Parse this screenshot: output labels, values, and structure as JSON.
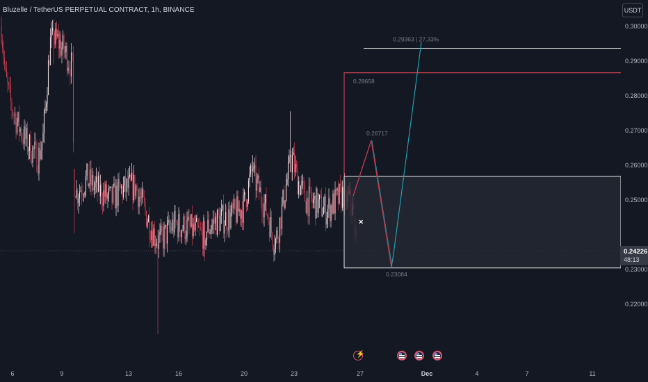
{
  "header": {
    "title": "Bluzelle / TetherUS PERPETUAL CONTRACT, 1h, BINANCE",
    "currency": "USDT"
  },
  "price_axis": {
    "ticks": [
      "0.30000",
      "0.29000",
      "0.28000",
      "0.27000",
      "0.26000",
      "0.25000",
      "0.23000",
      "0.22000"
    ],
    "last_price": "0.24226",
    "countdown": "48:13"
  },
  "time_axis": {
    "ticks": [
      {
        "label": "6",
        "bold": false
      },
      {
        "label": "9",
        "bold": false
      },
      {
        "label": "13",
        "bold": false
      },
      {
        "label": "16",
        "bold": false
      },
      {
        "label": "20",
        "bold": false
      },
      {
        "label": "23",
        "bold": false
      },
      {
        "label": "27",
        "bold": false
      },
      {
        "label": "Dec",
        "bold": true
      },
      {
        "label": "4",
        "bold": false
      },
      {
        "label": "7",
        "bold": false
      },
      {
        "label": "11",
        "bold": false
      }
    ]
  },
  "colors": {
    "background": "#141823",
    "up": "#f2dfe3",
    "down": "#c43b4e",
    "resistance": "#e0475a",
    "target": "#e8e8e8",
    "projection_down": "#c0394b",
    "projection_up": "#1f9fb3",
    "zone": "#252a36"
  },
  "chart_data": {
    "type": "candlestick",
    "symbol": "Bluzelle / TetherUS PERPETUAL CONTRACT",
    "interval": "1h",
    "exchange": "BINANCE",
    "y_range": [
      0.2125,
      0.3075
    ],
    "last_price": 0.24226,
    "levels": {
      "target": 0.29363,
      "resistance": 0.28658,
      "zone_top": 0.2568,
      "zone_bottom": 0.2305
    },
    "annotations": [
      {
        "text": "0.29363 | 27.33%",
        "value": 0.29363
      },
      {
        "text": "0.28658",
        "value": 0.28658
      },
      {
        "text": "0.26717",
        "value": 0.26717
      },
      {
        "text": "0.23084",
        "value": 0.23084
      }
    ],
    "projection_path": [
      0.2512,
      0.26717,
      0.23084,
      0.2345,
      0.29535
    ],
    "anchors": [
      {
        "label": "6",
        "close": 0.292
      },
      {
        "label": "9",
        "close": 0.289
      },
      {
        "label": "13",
        "close": 0.248
      },
      {
        "label": "16",
        "close": 0.242
      },
      {
        "label": "20",
        "close": 0.251
      },
      {
        "label": "23",
        "close": 0.252
      },
      {
        "label": "27",
        "close": 0.2425
      }
    ],
    "notable_extremes": {
      "high": 0.3055,
      "low": 0.2115
    }
  }
}
